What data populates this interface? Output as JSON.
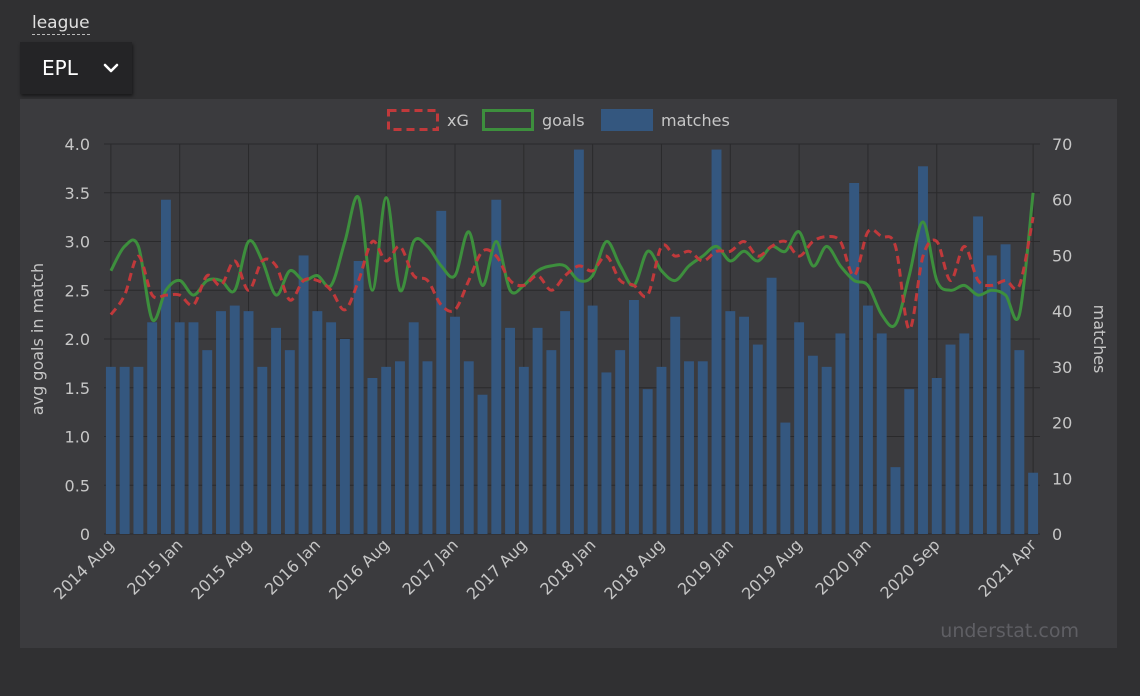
{
  "filter": {
    "label": "league",
    "selected": "EPL",
    "chevron_icon": "chevron-down-icon"
  },
  "colors": {
    "xg": "#c0393b",
    "goals": "#3d8f3d",
    "matches": "#34577f",
    "grid": "#2a2a2c"
  },
  "watermark": "understat.com",
  "chart_data": {
    "type": "bar",
    "title": "",
    "legend": {
      "position": "top",
      "entries": [
        "xG",
        "goals",
        "matches"
      ]
    },
    "ylabel_left": "avg goals in match",
    "ylabel_right": "matches",
    "ylim_left": [
      0,
      4.0
    ],
    "ylim_right": [
      0,
      70
    ],
    "yticks_left": [
      "0",
      "0.5",
      "1.0",
      "1.5",
      "2.0",
      "2.5",
      "3.0",
      "3.5",
      "4.0"
    ],
    "yticks_right": [
      "0",
      "10",
      "20",
      "30",
      "40",
      "50",
      "60",
      "70"
    ],
    "x_tick_labels": [
      {
        "index": 0,
        "label": "2014 Aug"
      },
      {
        "index": 5,
        "label": "2015 Jan"
      },
      {
        "index": 10,
        "label": "2015 Aug"
      },
      {
        "index": 15,
        "label": "2016 Jan"
      },
      {
        "index": 20,
        "label": "2016 Aug"
      },
      {
        "index": 25,
        "label": "2017 Jan"
      },
      {
        "index": 30,
        "label": "2017 Aug"
      },
      {
        "index": 35,
        "label": "2018 Jan"
      },
      {
        "index": 40,
        "label": "2018 Aug"
      },
      {
        "index": 45,
        "label": "2019 Jan"
      },
      {
        "index": 50,
        "label": "2019 Aug"
      },
      {
        "index": 55,
        "label": "2020 Jan"
      },
      {
        "index": 60,
        "label": "2020 Sep"
      },
      {
        "index": 67,
        "label": "2021 Apr"
      }
    ],
    "grid": true,
    "series": [
      {
        "name": "matches",
        "type": "bar",
        "axis": "right",
        "values": [
          30,
          30,
          30,
          38,
          60,
          38,
          38,
          33,
          40,
          41,
          40,
          30,
          37,
          33,
          50,
          40,
          38,
          35,
          49,
          28,
          30,
          31,
          38,
          31,
          58,
          39,
          31,
          25,
          60,
          37,
          30,
          37,
          33,
          40,
          69,
          41,
          29,
          33,
          42,
          26,
          30,
          39,
          31,
          31,
          69,
          40,
          39,
          34,
          46,
          20,
          38,
          32,
          30,
          36,
          63,
          41,
          36,
          12,
          26,
          66,
          28,
          34,
          36,
          57,
          50,
          52,
          33,
          11
        ]
      },
      {
        "name": "xG",
        "type": "line",
        "style": "dashed",
        "axis": "left",
        "values": [
          2.25,
          2.45,
          2.85,
          2.45,
          2.45,
          2.45,
          2.35,
          2.65,
          2.55,
          2.8,
          2.5,
          2.8,
          2.75,
          2.4,
          2.6,
          2.6,
          2.5,
          2.3,
          2.6,
          3.0,
          2.8,
          2.95,
          2.65,
          2.6,
          2.35,
          2.3,
          2.6,
          2.9,
          2.85,
          2.6,
          2.55,
          2.65,
          2.5,
          2.65,
          2.75,
          2.7,
          2.85,
          2.6,
          2.55,
          2.45,
          2.95,
          2.85,
          2.9,
          2.8,
          2.9,
          2.9,
          3.0,
          2.85,
          2.95,
          3.0,
          2.85,
          3.0,
          3.05,
          3.0,
          2.65,
          3.1,
          3.05,
          2.95,
          2.1,
          2.85,
          3.0,
          2.6,
          2.95,
          2.6,
          2.55,
          2.6,
          2.55,
          3.25
        ]
      },
      {
        "name": "goals",
        "type": "line",
        "style": "solid",
        "axis": "left",
        "values": [
          2.7,
          2.95,
          2.95,
          2.2,
          2.5,
          2.6,
          2.45,
          2.6,
          2.6,
          2.5,
          3.0,
          2.8,
          2.45,
          2.7,
          2.6,
          2.65,
          2.55,
          3.0,
          3.45,
          2.5,
          3.45,
          2.5,
          3.0,
          2.95,
          2.75,
          2.65,
          3.1,
          2.55,
          3.0,
          2.5,
          2.55,
          2.7,
          2.75,
          2.75,
          2.6,
          2.65,
          3.0,
          2.75,
          2.55,
          2.9,
          2.7,
          2.6,
          2.75,
          2.85,
          2.95,
          2.8,
          2.9,
          2.8,
          2.95,
          2.9,
          3.1,
          2.75,
          2.95,
          2.75,
          2.6,
          2.55,
          2.25,
          2.15,
          2.65,
          3.2,
          2.6,
          2.5,
          2.55,
          2.45,
          2.5,
          2.45,
          2.25,
          3.5
        ]
      }
    ]
  }
}
